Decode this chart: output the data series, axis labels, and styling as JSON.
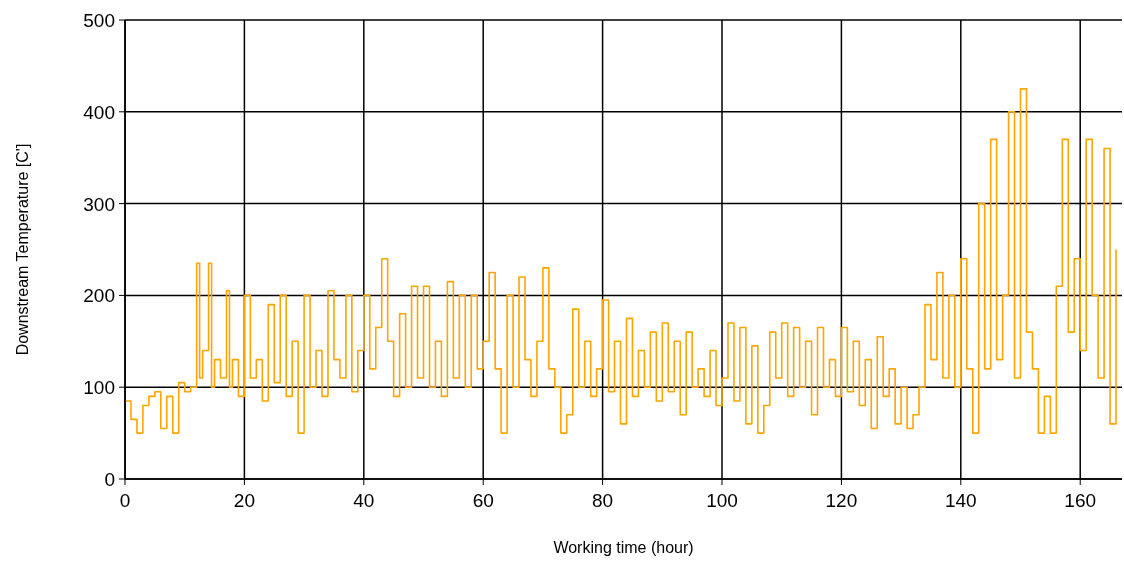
{
  "chart_data": {
    "type": "step",
    "xlabel": "Working time (hour)",
    "ylabel": "Downstream Temperature [C']",
    "xlim": [
      0,
      167
    ],
    "ylim": [
      0,
      500
    ],
    "xticks": [
      0,
      20,
      40,
      60,
      80,
      100,
      120,
      140,
      160
    ],
    "yticks": [
      0,
      100,
      200,
      300,
      400,
      500
    ],
    "grid": true,
    "series": [
      {
        "color": "#ffa500",
        "x": [
          0,
          1,
          2,
          3,
          4,
          5,
          6,
          7,
          8,
          9,
          10,
          11,
          12,
          12.5,
          13,
          14,
          14.5,
          15,
          16,
          17,
          17.5,
          18,
          19,
          20,
          21,
          22,
          23,
          24,
          25,
          26,
          27,
          28,
          29,
          30,
          31,
          32,
          33,
          34,
          35,
          36,
          37,
          38,
          39,
          40,
          41,
          42,
          43,
          44,
          45,
          46,
          47,
          48,
          49,
          50,
          51,
          52,
          53,
          54,
          55,
          56,
          57,
          58,
          59,
          60,
          61,
          62,
          63,
          64,
          65,
          66,
          67,
          68,
          69,
          70,
          71,
          72,
          73,
          74,
          75,
          76,
          77,
          78,
          79,
          80,
          81,
          82,
          83,
          84,
          85,
          86,
          87,
          88,
          89,
          90,
          91,
          92,
          93,
          94,
          95,
          96,
          97,
          98,
          99,
          100,
          101,
          102,
          103,
          104,
          105,
          106,
          107,
          108,
          109,
          110,
          111,
          112,
          113,
          114,
          115,
          116,
          117,
          118,
          119,
          120,
          121,
          122,
          123,
          124,
          125,
          126,
          127,
          128,
          129,
          130,
          131,
          132,
          133,
          134,
          135,
          136,
          137,
          138,
          139,
          140,
          141,
          142,
          143,
          144,
          145,
          146,
          147,
          148,
          149,
          150,
          151,
          152,
          153,
          154,
          155,
          156,
          157,
          158,
          159,
          160,
          161,
          162,
          163,
          164,
          165,
          166
        ],
        "values": [
          85,
          65,
          50,
          80,
          90,
          95,
          55,
          90,
          50,
          105,
          95,
          100,
          235,
          110,
          140,
          235,
          100,
          130,
          110,
          205,
          100,
          130,
          90,
          200,
          110,
          130,
          85,
          190,
          105,
          200,
          90,
          150,
          50,
          200,
          100,
          140,
          90,
          205,
          130,
          110,
          200,
          95,
          140,
          200,
          120,
          165,
          240,
          150,
          90,
          180,
          100,
          210,
          110,
          210,
          100,
          150,
          90,
          215,
          110,
          200,
          100,
          200,
          120,
          150,
          225,
          120,
          50,
          200,
          100,
          220,
          130,
          90,
          150,
          230,
          120,
          100,
          50,
          70,
          185,
          100,
          150,
          90,
          120,
          195,
          95,
          150,
          60,
          175,
          90,
          140,
          100,
          160,
          85,
          170,
          95,
          150,
          70,
          160,
          100,
          120,
          90,
          140,
          80,
          110,
          170,
          85,
          165,
          60,
          145,
          50,
          80,
          160,
          110,
          170,
          90,
          165,
          100,
          150,
          70,
          165,
          100,
          130,
          90,
          165,
          95,
          150,
          80,
          130,
          55,
          155,
          90,
          120,
          60,
          100,
          55,
          70,
          100,
          190,
          130,
          225,
          110,
          200,
          100,
          240,
          120,
          50,
          300,
          120,
          370,
          130,
          200,
          400,
          110,
          425,
          160,
          120,
          50,
          90,
          50,
          210,
          370,
          160,
          240,
          140,
          370,
          200,
          110,
          360,
          60,
          250
        ]
      }
    ]
  }
}
